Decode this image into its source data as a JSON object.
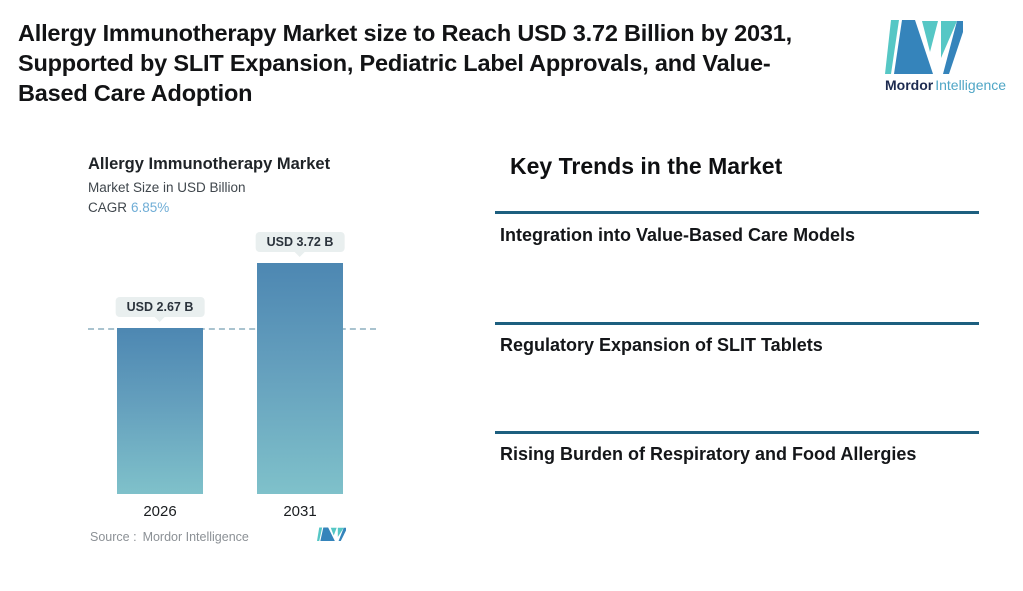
{
  "header": {
    "title": "Allergy Immunotherapy Market size to Reach USD 3.72 Billion by 2031, Supported by SLIT Expansion, Pediatric Label Approvals, and Value-Based Care Adoption",
    "brand": {
      "name_bold": "Mordor",
      "name_light": "Intelligence"
    }
  },
  "chart": {
    "title": "Allergy Immunotherapy Market",
    "subtitle": "Market Size in USD Billion",
    "cagr_label": "CAGR",
    "cagr_value": "6.85%",
    "source_label": "Source :",
    "source_value": "Mordor Intelligence"
  },
  "chart_data": {
    "type": "bar",
    "title": "Allergy Immunotherapy Market",
    "ylabel": "Market Size in USD Billion",
    "categories": [
      "2026",
      "2031"
    ],
    "values": [
      2.67,
      3.72
    ],
    "labels": [
      "USD 2.67 B",
      "USD 3.72 B"
    ],
    "cagr": "6.85%",
    "baseline_value": 2.67,
    "ylim": [
      0,
      4.25
    ],
    "grid": "off",
    "legend": "none"
  },
  "trends": {
    "heading": "Key Trends in the Market",
    "items": [
      "Integration into Value-Based Care Models",
      "Regulatory Expansion of SLIT Tablets",
      "Rising Burden of Respiratory and Food Allergies"
    ]
  },
  "colors": {
    "accent_rule": "#1d5f7f",
    "bar_top": "#4d87b2",
    "bar_bottom": "#7fc1ca",
    "dashed_line": "#a9c3cf",
    "cagr_blue": "#6fadd6",
    "pill_bg": "#e9efef",
    "logo_blue": "#3584bb",
    "logo_teal": "#56c7c5",
    "brand_navy": "#1d2b50",
    "brand_teal": "#4fa6c6"
  }
}
